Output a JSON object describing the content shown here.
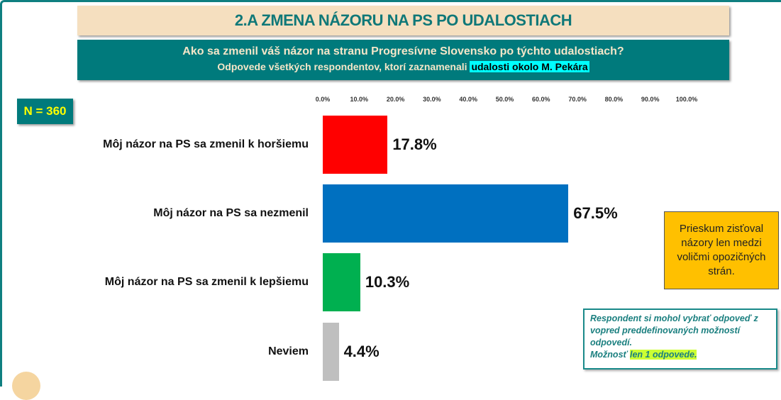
{
  "header": {
    "title": "2.A ZMENA NÁZORU NA PS PO UDALOSTIACH",
    "question": "Ako sa zmenil váš názor na stranu Progresívne Slovensko po týchto udalostiach?",
    "subtitle": "Odpovede všetkých respondentov, ktorí zaznamenali ",
    "subtitle_highlight": "udalosti okolo M. Pekára"
  },
  "sample": "N = 360",
  "note": "Prieskum zisťoval názory len medzi voličmi opozičných strán.",
  "respondent_note": {
    "text": "Respondent si mohol vybrať odpoveď z vopred preddefinovaných možností odpovedí.",
    "prefix": "Možnosť ",
    "highlight": "len 1 odpovede."
  },
  "chart_data": {
    "type": "bar",
    "orientation": "horizontal",
    "categories": [
      "Môj názor na PS sa zmenil k horšiemu",
      "Môj názor na PS sa nezmenil",
      "Môj názor na PS sa zmenil k lepšiemu",
      "Neviem"
    ],
    "values": [
      17.8,
      67.5,
      10.3,
      4.4
    ],
    "labels": [
      "17.8%",
      "67.5%",
      "10.3%",
      "4.4%"
    ],
    "colors": [
      "#ff0000",
      "#0070c0",
      "#00b050",
      "#bfbfbf"
    ],
    "xlim": [
      0,
      100
    ],
    "ticks": [
      "0.0%",
      "10.0%",
      "20.0%",
      "30.0%",
      "40.0%",
      "50.0%",
      "60.0%",
      "70.0%",
      "80.0%",
      "90.0%",
      "100.0%"
    ]
  }
}
